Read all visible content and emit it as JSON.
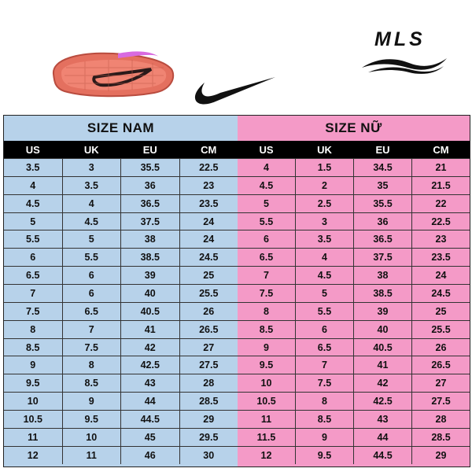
{
  "brand": {
    "left_logo": "nike-swoosh",
    "right_logo_text": "MLS"
  },
  "table": {
    "men_title": "SIZE NAM",
    "women_title": "SIZE NỮ",
    "headers": [
      "US",
      "UK",
      "EU",
      "CM"
    ],
    "men_rows": [
      [
        "3.5",
        "3",
        "35.5",
        "22.5"
      ],
      [
        "4",
        "3.5",
        "36",
        "23"
      ],
      [
        "4.5",
        "4",
        "36.5",
        "23.5"
      ],
      [
        "5",
        "4.5",
        "37.5",
        "24"
      ],
      [
        "5.5",
        "5",
        "38",
        "24"
      ],
      [
        "6",
        "5.5",
        "38.5",
        "24.5"
      ],
      [
        "6.5",
        "6",
        "39",
        "25"
      ],
      [
        "7",
        "6",
        "40",
        "25.5"
      ],
      [
        "7.5",
        "6.5",
        "40.5",
        "26"
      ],
      [
        "8",
        "7",
        "41",
        "26.5"
      ],
      [
        "8.5",
        "7.5",
        "42",
        "27"
      ],
      [
        "9",
        "8",
        "42.5",
        "27.5"
      ],
      [
        "9.5",
        "8.5",
        "43",
        "28"
      ],
      [
        "10",
        "9",
        "44",
        "28.5"
      ],
      [
        "10.5",
        "9.5",
        "44.5",
        "29"
      ],
      [
        "11",
        "10",
        "45",
        "29.5"
      ],
      [
        "12",
        "11",
        "46",
        "30"
      ]
    ],
    "women_rows": [
      [
        "4",
        "1.5",
        "34.5",
        "21"
      ],
      [
        "4.5",
        "2",
        "35",
        "21.5"
      ],
      [
        "5",
        "2.5",
        "35.5",
        "22"
      ],
      [
        "5.5",
        "3",
        "36",
        "22.5"
      ],
      [
        "6",
        "3.5",
        "36.5",
        "23"
      ],
      [
        "6.5",
        "4",
        "37.5",
        "23.5"
      ],
      [
        "7",
        "4.5",
        "38",
        "24"
      ],
      [
        "7.5",
        "5",
        "38.5",
        "24.5"
      ],
      [
        "8",
        "5.5",
        "39",
        "25"
      ],
      [
        "8.5",
        "6",
        "40",
        "25.5"
      ],
      [
        "9",
        "6.5",
        "40.5",
        "26"
      ],
      [
        "9.5",
        "7",
        "41",
        "26.5"
      ],
      [
        "10",
        "7.5",
        "42",
        "27"
      ],
      [
        "10.5",
        "8",
        "42.5",
        "27.5"
      ],
      [
        "11",
        "8.5",
        "43",
        "28"
      ],
      [
        "11.5",
        "9",
        "44",
        "28.5"
      ],
      [
        "12",
        "9.5",
        "44.5",
        "29"
      ]
    ]
  },
  "colors": {
    "men_bg": "#b7d2ea",
    "women_bg": "#f49ac7",
    "header_bg": "#000000"
  }
}
